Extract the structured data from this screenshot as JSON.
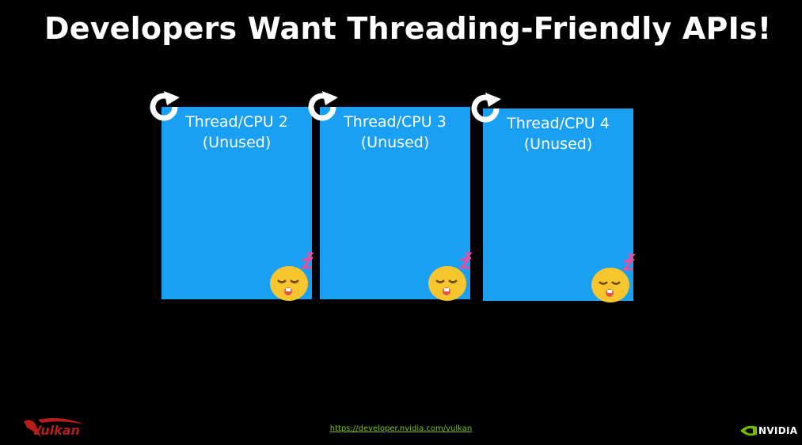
{
  "slide": {
    "title": "Developers Want Threading-Friendly APIs!"
  },
  "threads": [
    {
      "name": "Thread/CPU 2",
      "status": "(Unused)",
      "icon": "refresh-icon",
      "emoji": "sleeping-face-icon"
    },
    {
      "name": "Thread/CPU 3",
      "status": "(Unused)",
      "icon": "refresh-icon",
      "emoji": "sleeping-face-icon"
    },
    {
      "name": "Thread/CPU 4",
      "status": "(Unused)",
      "icon": "refresh-icon",
      "emoji": "sleeping-face-icon"
    }
  ],
  "footer": {
    "url": "https://developer.nvidia.com/vulkan",
    "left_logo": "Vulkan",
    "right_logo": "NVIDIA"
  },
  "colors": {
    "background": "#000000",
    "box": "#1aa0f2",
    "link": "#7ec022",
    "vulkan": "#b51d1d"
  }
}
